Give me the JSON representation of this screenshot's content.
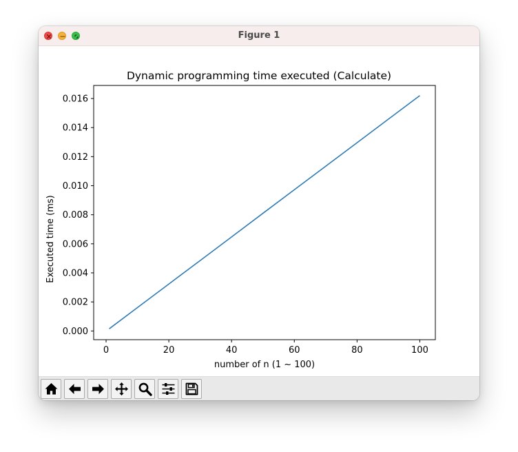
{
  "window": {
    "title": "Figure 1"
  },
  "toolbar": {
    "buttons": [
      {
        "icon": "home-icon"
      },
      {
        "icon": "back-arrow-icon"
      },
      {
        "icon": "forward-arrow-icon"
      },
      {
        "icon": "pan-move-icon"
      },
      {
        "icon": "zoom-magnifier-icon"
      },
      {
        "icon": "configure-subplots-icon"
      },
      {
        "icon": "save-disk-icon"
      }
    ]
  },
  "colors": {
    "line": "#2c7bb6",
    "titlebar": "#f6edec",
    "toolbar": "#e9e9e9"
  },
  "chart_data": {
    "type": "line",
    "title": "Dynamic programming time executed (Calculate)",
    "xlabel": "number of n (1 ~ 100)",
    "ylabel": "Executed time (ms)",
    "xlim": [
      -3.95,
      104.95
    ],
    "ylim": [
      -0.0006,
      0.0169
    ],
    "xticks": [
      0,
      20,
      40,
      60,
      80,
      100
    ],
    "xtick_labels": [
      "0",
      "20",
      "40",
      "60",
      "80",
      "100"
    ],
    "yticks": [
      0.0,
      0.002,
      0.004,
      0.006,
      0.008,
      0.01,
      0.012,
      0.014,
      0.016
    ],
    "ytick_labels": [
      "0.000",
      "0.002",
      "0.004",
      "0.006",
      "0.008",
      "0.010",
      "0.012",
      "0.014",
      "0.016"
    ],
    "grid": false,
    "series": [
      {
        "x": [
          1,
          10,
          20,
          30,
          40,
          50,
          60,
          70,
          80,
          90,
          100
        ],
        "values": [
          0.00015,
          0.00161,
          0.00323,
          0.00485,
          0.00647,
          0.0081,
          0.00972,
          0.01134,
          0.01296,
          0.01458,
          0.0162
        ]
      }
    ]
  }
}
